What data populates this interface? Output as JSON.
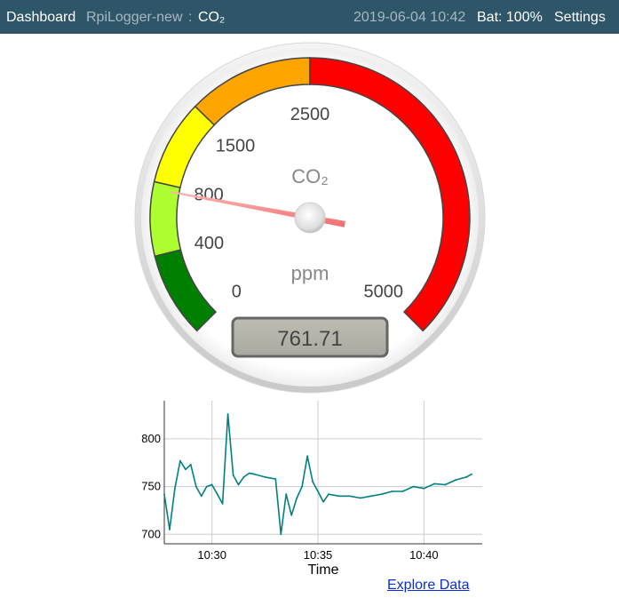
{
  "topbar": {
    "dashboard": "Dashboard",
    "device": "RpiLogger-new",
    "separator": ":",
    "sensor": "CO₂",
    "datetime": "2019-06-04 10:42",
    "battery": "Bat: 100%",
    "settings": "Settings"
  },
  "gauge": {
    "title": "CO₂",
    "units": "ppm",
    "value": 761.71,
    "value_text": "761.71",
    "min": 0,
    "max": 5000,
    "tick_labels": [
      "0",
      "400",
      "800",
      "1500",
      "2500",
      "5000"
    ],
    "highlights": [
      {
        "from": 0,
        "to": 400,
        "color": "#008000"
      },
      {
        "from": 400,
        "to": 800,
        "color": "#adff2f"
      },
      {
        "from": 800,
        "to": 1500,
        "color": "#ffff00"
      },
      {
        "from": 1500,
        "to": 2500,
        "color": "#ffa500"
      },
      {
        "from": 2500,
        "to": 5000,
        "color": "#ff0000"
      }
    ]
  },
  "chart_data": {
    "type": "line",
    "title": "",
    "xlabel": "Time",
    "ylabel": "",
    "x_ticks": [
      "10:30",
      "10:35",
      "10:40"
    ],
    "y_ticks": [
      700,
      750,
      800
    ],
    "x_range": [
      "10:27:45",
      "10:42:45"
    ],
    "ylim": [
      690,
      840
    ],
    "grid": true,
    "color": "#008080",
    "series": [
      {
        "x": [
          "10:27:45",
          "10:28:00",
          "10:28:15",
          "10:28:30",
          "10:28:45",
          "10:29:00",
          "10:29:15",
          "10:29:30",
          "10:29:45",
          "10:30:00",
          "10:30:15",
          "10:30:30",
          "10:30:45",
          "10:31:00",
          "10:31:15",
          "10:31:30",
          "10:31:45",
          "10:32:00",
          "10:32:30",
          "10:33:00",
          "10:33:15",
          "10:33:30",
          "10:33:45",
          "10:34:00",
          "10:34:15",
          "10:34:30",
          "10:34:45",
          "10:35:00",
          "10:35:15",
          "10:35:30",
          "10:36:00",
          "10:36:30",
          "10:37:00",
          "10:37:30",
          "10:38:00",
          "10:38:30",
          "10:39:00",
          "10:39:30",
          "10:40:00",
          "10:40:30",
          "10:41:00",
          "10:41:30",
          "10:42:00",
          "10:42:15"
        ],
        "y": [
          742,
          705,
          748,
          777,
          768,
          773,
          750,
          740,
          750,
          752,
          742,
          732,
          826,
          762,
          752,
          760,
          764,
          763,
          760,
          758,
          700,
          742,
          720,
          738,
          750,
          782,
          755,
          745,
          734,
          742,
          740,
          740,
          738,
          740,
          742,
          745,
          745,
          750,
          748,
          753,
          752,
          757,
          760,
          763
        ]
      }
    ]
  },
  "explore_link": "Explore Data"
}
